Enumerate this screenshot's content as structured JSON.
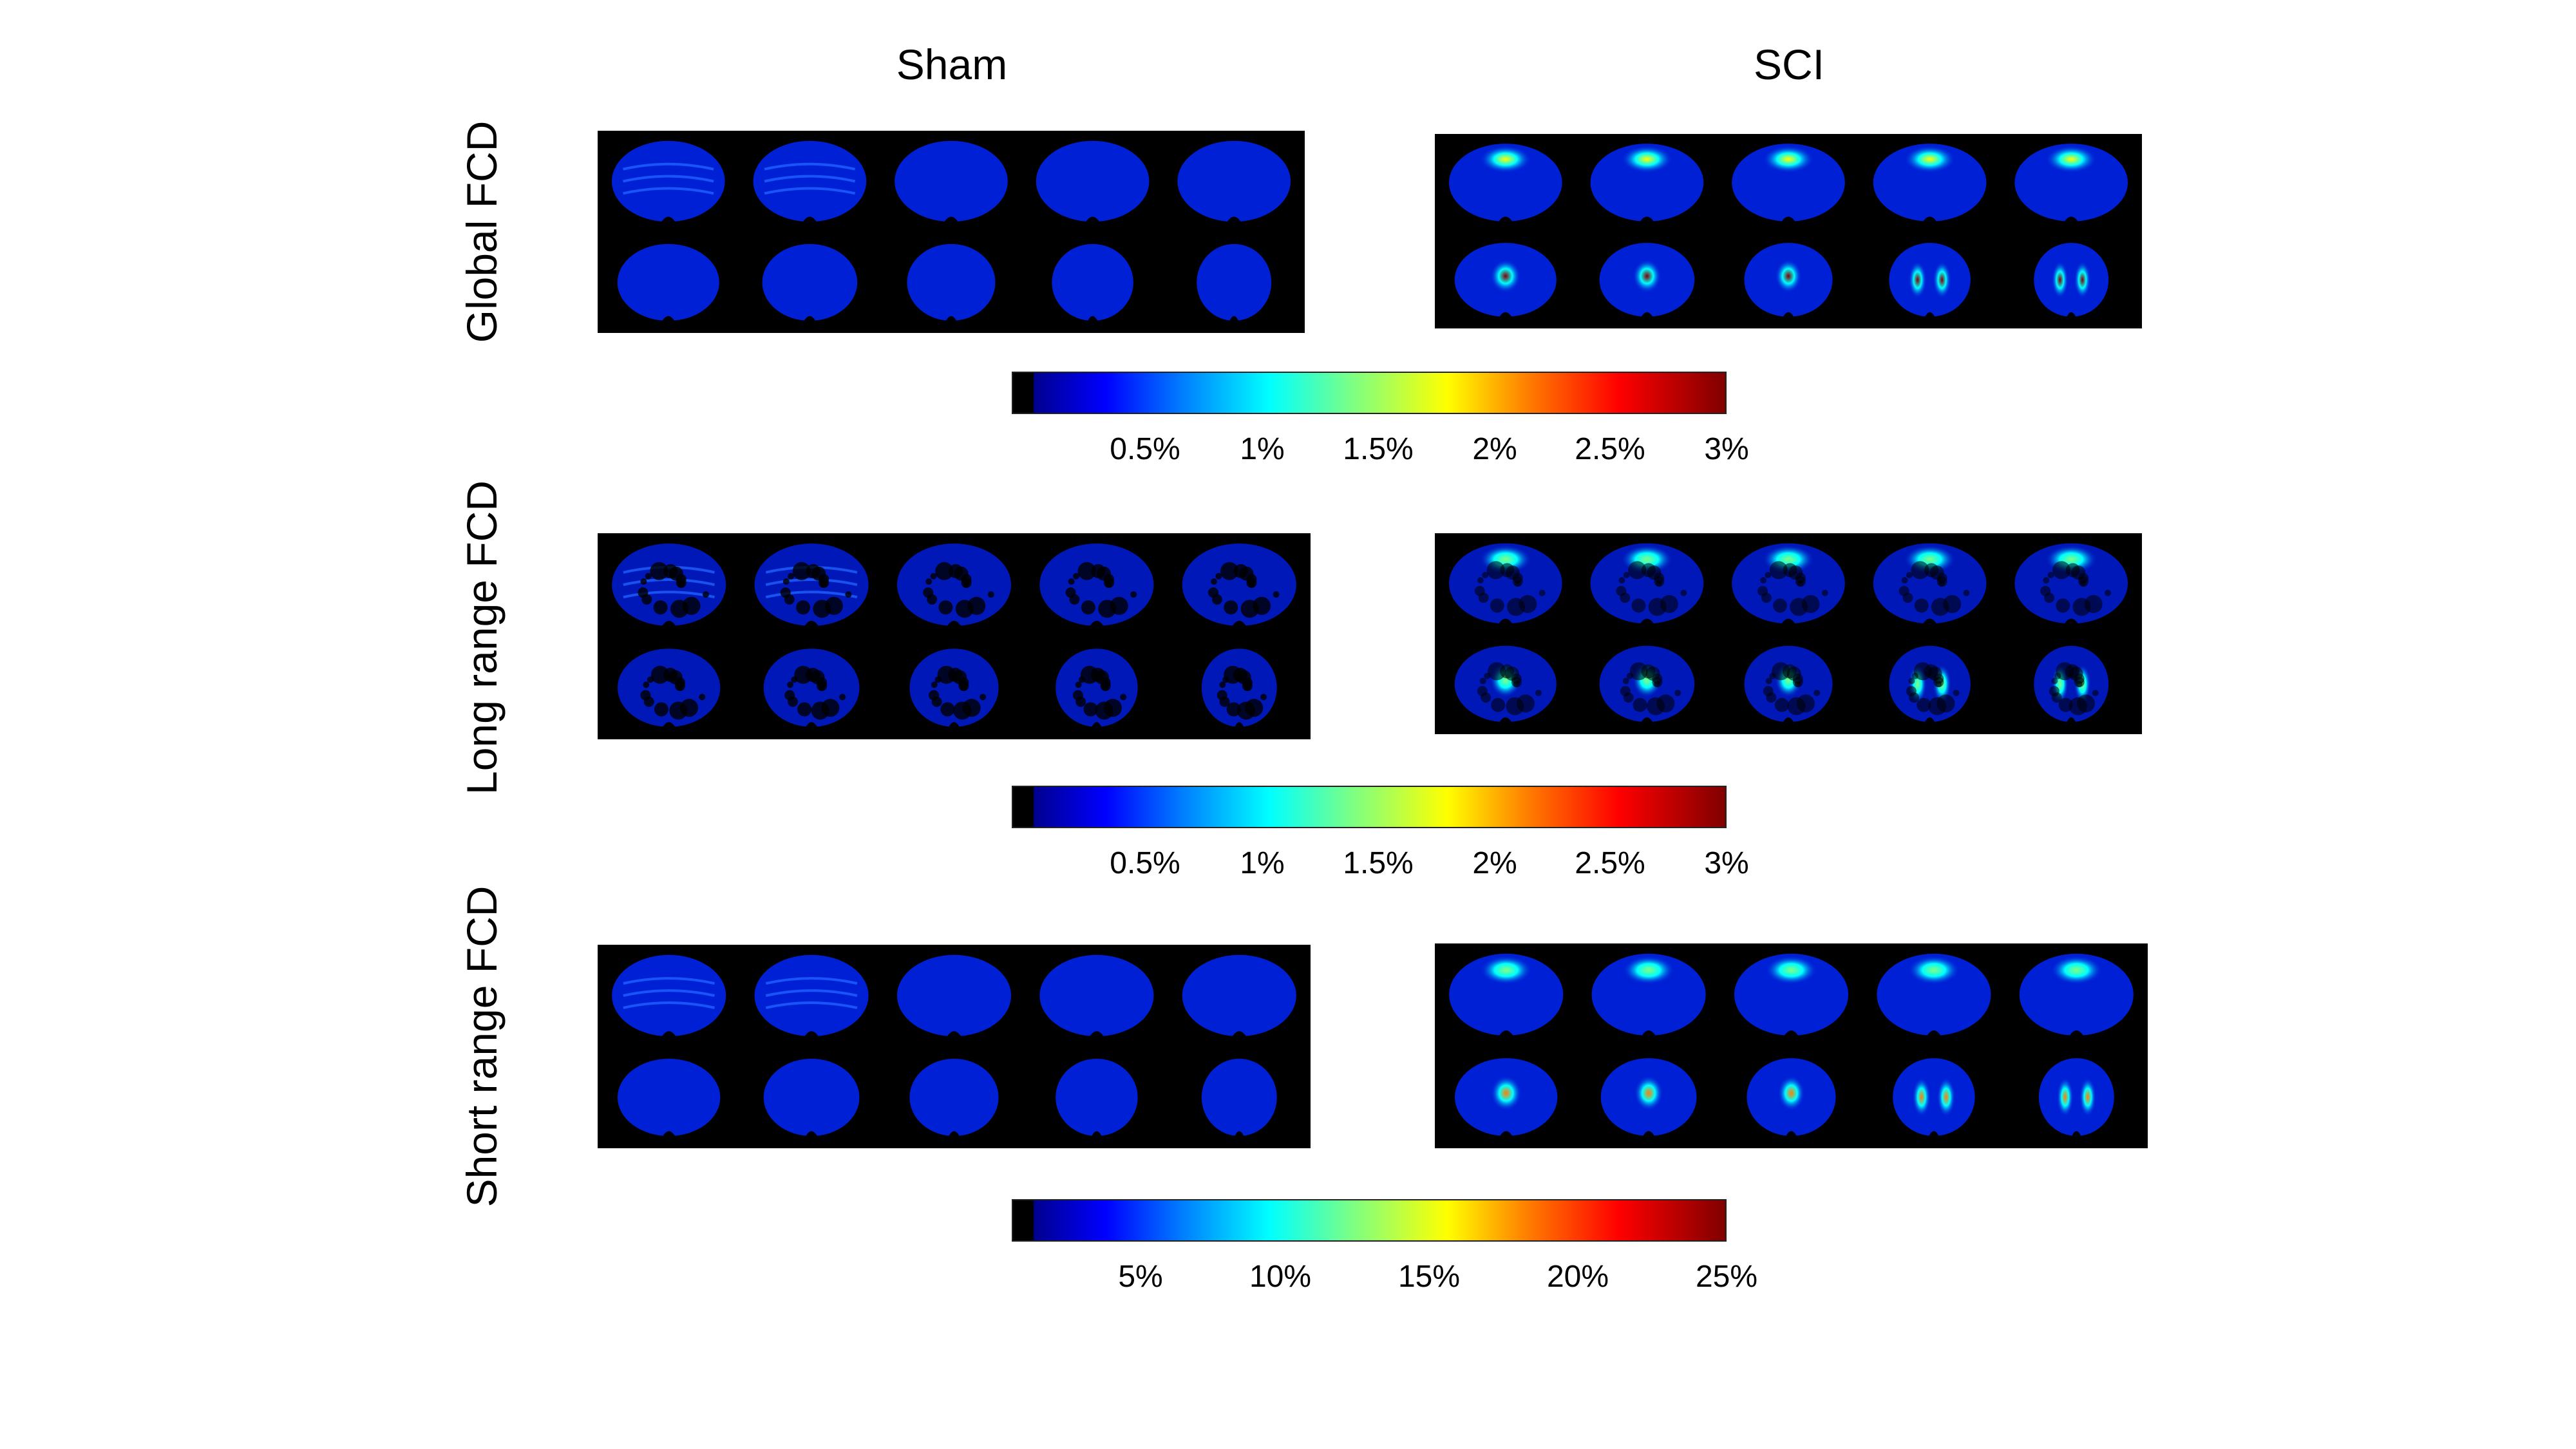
{
  "columns": {
    "left": "Sham",
    "right": "SCI"
  },
  "rows": [
    {
      "label": "Global FCD",
      "colorbar_ticks": [
        "0.5%",
        "1%",
        "1.5%",
        "2%",
        "2.5%",
        "3%"
      ]
    },
    {
      "label": "Long range FCD",
      "colorbar_ticks": [
        "0.5%",
        "1%",
        "1.5%",
        "2%",
        "2.5%",
        "3%"
      ]
    },
    {
      "label": "Short range FCD",
      "colorbar_ticks": [
        "5%",
        "10%",
        "15%",
        "20%",
        "25%"
      ]
    }
  ],
  "colormap": [
    "#000000",
    "#00008f",
    "#0000ff",
    "#0080ff",
    "#00ffff",
    "#80ff80",
    "#ffff00",
    "#ff8000",
    "#ff0000",
    "#800000"
  ],
  "slice_count_per_panel": 10
}
